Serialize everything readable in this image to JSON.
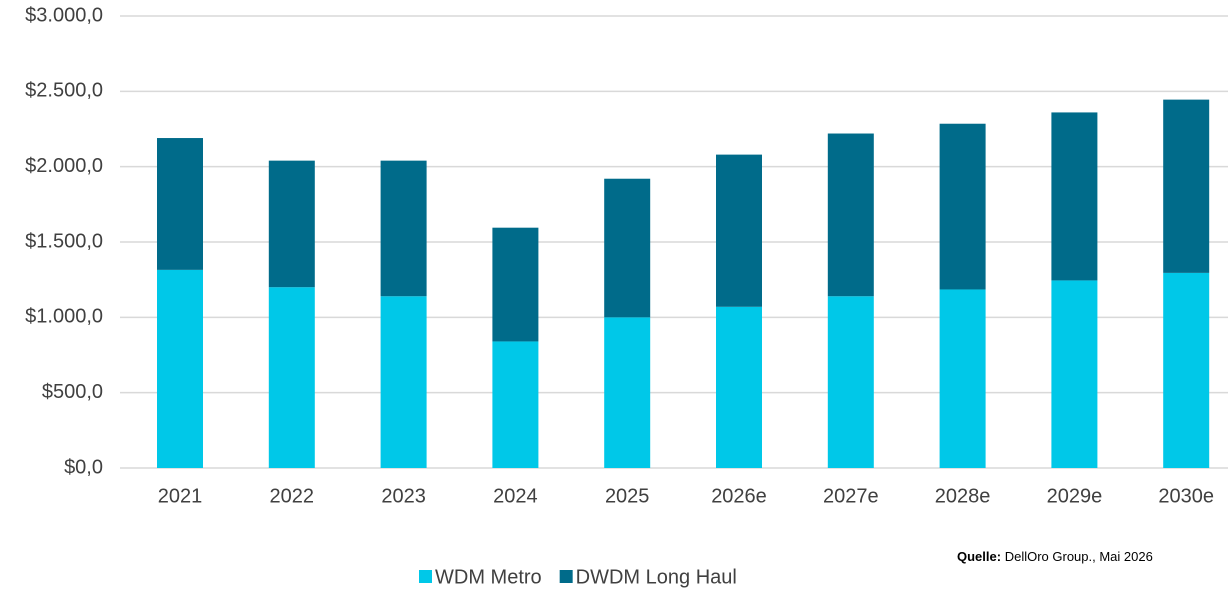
{
  "chart_data": {
    "type": "stacked_bar",
    "categories": [
      "2021",
      "2022",
      "2023",
      "2024",
      "2025",
      "2026e",
      "2027e",
      "2028e",
      "2029e",
      "2030e"
    ],
    "series": [
      {
        "name": "WDM Metro",
        "color": "#00c8e8",
        "values": [
          1315,
          1200,
          1140,
          840,
          1000,
          1070,
          1140,
          1185,
          1245,
          1295
        ]
      },
      {
        "name": "DWDM Long Haul",
        "color": "#006b8a",
        "values": [
          875,
          840,
          900,
          755,
          920,
          1010,
          1080,
          1100,
          1115,
          1150
        ]
      }
    ],
    "ylim": [
      0,
      3000
    ],
    "yticks": [
      {
        "value": 0,
        "label": "$0,0"
      },
      {
        "value": 500,
        "label": "$500,0"
      },
      {
        "value": 1000,
        "label": "$1.000,0"
      },
      {
        "value": 1500,
        "label": "$1.500,0"
      },
      {
        "value": 2000,
        "label": "$2.000,0"
      },
      {
        "value": 2500,
        "label": "$2.500,0"
      },
      {
        "value": 3000,
        "label": "$3.000,0"
      }
    ],
    "grid": true,
    "legend": "bottom",
    "source_label": "Quelle:",
    "source": "DellOro Group., Mai 2026"
  }
}
